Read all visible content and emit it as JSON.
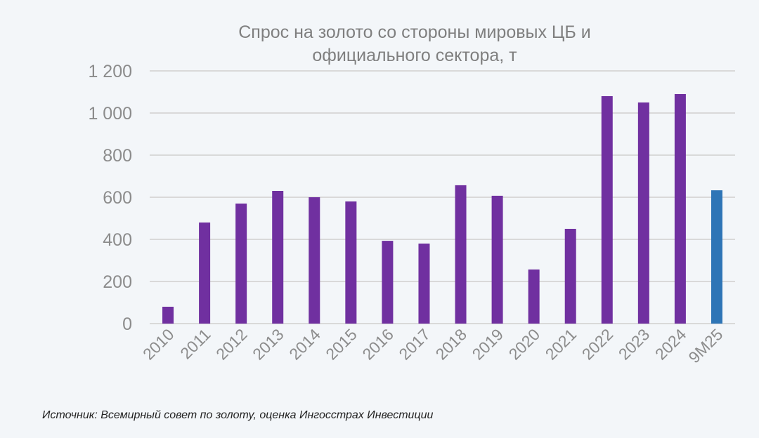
{
  "chart_data": {
    "type": "bar",
    "title_line1": "Спрос на золото со стороны мировых ЦБ и",
    "title_line2": "официального сектора, т",
    "categories": [
      "2010",
      "2011",
      "2012",
      "2013",
      "2014",
      "2015",
      "2016",
      "2017",
      "2018",
      "2019",
      "2020",
      "2021",
      "2022",
      "2023",
      "2024",
      "9M25"
    ],
    "values": [
      80,
      480,
      570,
      630,
      600,
      580,
      393,
      380,
      657,
      607,
      257,
      450,
      1080,
      1050,
      1090,
      633
    ],
    "colors": [
      "#7030a0",
      "#7030a0",
      "#7030a0",
      "#7030a0",
      "#7030a0",
      "#7030a0",
      "#7030a0",
      "#7030a0",
      "#7030a0",
      "#7030a0",
      "#7030a0",
      "#7030a0",
      "#7030a0",
      "#7030a0",
      "#7030a0",
      "#2e75b6"
    ],
    "ylim": [
      0,
      1200
    ],
    "yticks": [
      0,
      200,
      400,
      600,
      800,
      1000,
      1200
    ],
    "ytick_labels": [
      "0",
      "200",
      "400",
      "600",
      "800",
      "1 000",
      "1 200"
    ],
    "grid": true,
    "xlabel": "",
    "ylabel": ""
  },
  "source": "Источник: Всемирный совет по золоту, оценка Ингосстрах Инвестиции"
}
